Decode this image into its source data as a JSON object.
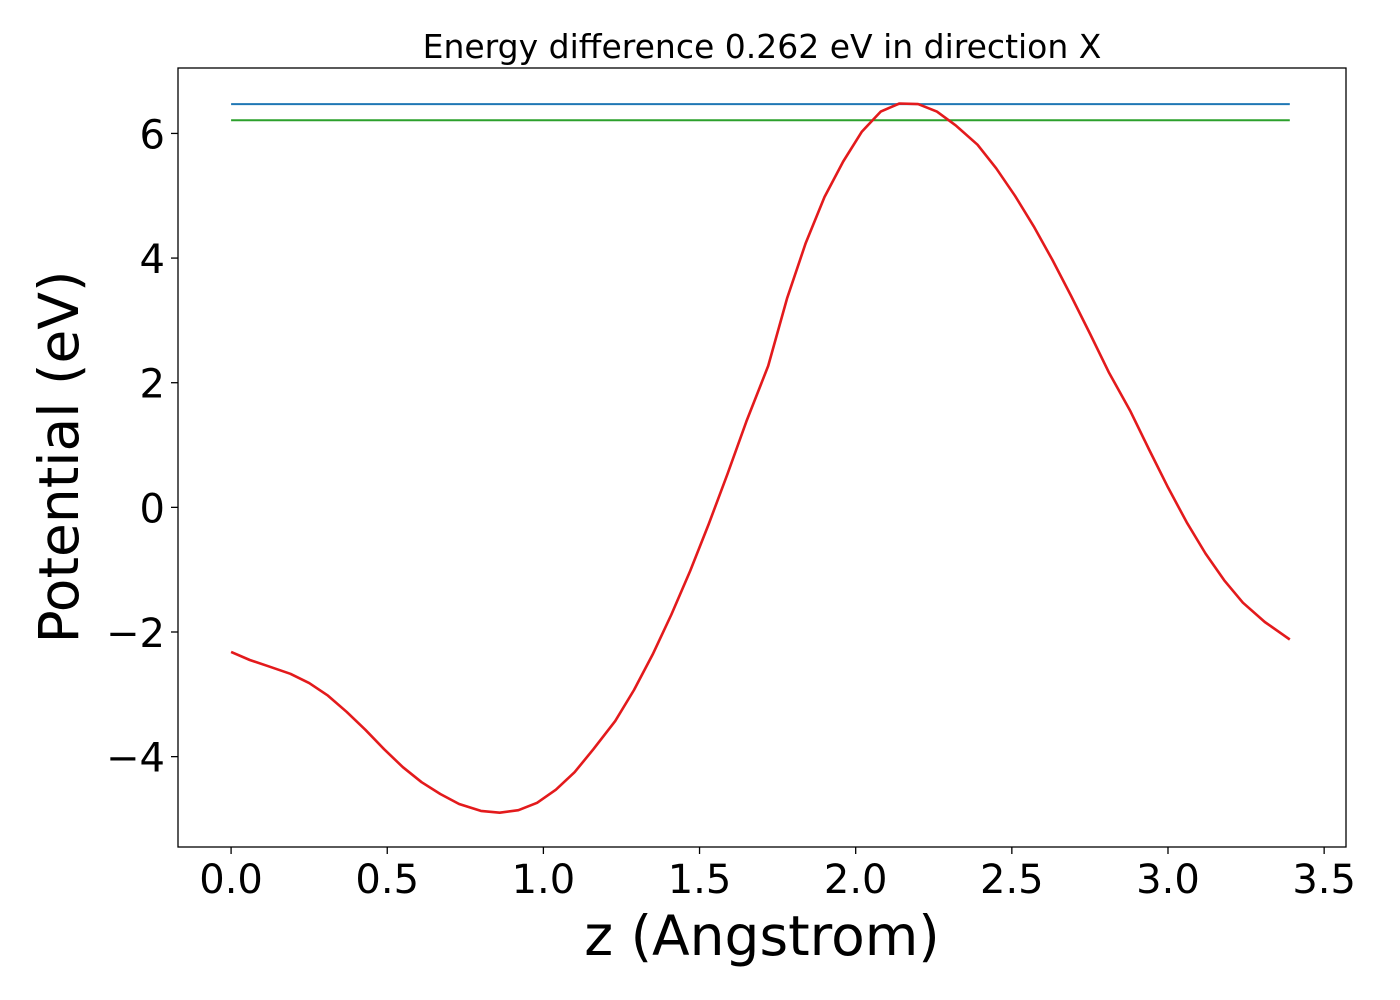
{
  "chart_data": {
    "type": "line",
    "title": "Energy difference 0.262 eV in direction X",
    "xlabel": "z (Angstrom)",
    "ylabel": "Potential (eV)",
    "xlim": [
      -0.17,
      3.57
    ],
    "ylim": [
      -5.45,
      7.05
    ],
    "x_ticks": [
      0.0,
      0.5,
      1.0,
      1.5,
      2.0,
      2.5,
      3.0,
      3.5
    ],
    "x_tick_labels": [
      "0.0",
      "0.5",
      "1.0",
      "1.5",
      "2.0",
      "2.5",
      "3.0",
      "3.5"
    ],
    "y_ticks": [
      -4,
      -2,
      0,
      2,
      4,
      6
    ],
    "y_tick_labels": [
      "−4",
      "−2",
      "0",
      "2",
      "4",
      "6"
    ],
    "grid": false,
    "series": [
      {
        "color": "#1f77b4",
        "x": [
          0.0,
          3.39
        ],
        "y": [
          6.47,
          6.47
        ]
      },
      {
        "color": "#2ca02c",
        "x": [
          0.0,
          3.39
        ],
        "y": [
          6.21,
          6.21
        ]
      },
      {
        "color": "#e31a1c",
        "x": [
          0.0,
          0.06,
          0.12,
          0.19,
          0.25,
          0.31,
          0.37,
          0.43,
          0.49,
          0.55,
          0.61,
          0.67,
          0.73,
          0.8,
          0.86,
          0.92,
          0.98,
          1.04,
          1.1,
          1.16,
          1.23,
          1.29,
          1.35,
          1.41,
          1.47,
          1.53,
          1.59,
          1.65,
          1.72,
          1.78,
          1.84,
          1.9,
          1.96,
          2.02,
          2.08,
          2.14,
          2.2,
          2.26,
          2.32,
          2.39,
          2.45,
          2.51,
          2.57,
          2.63,
          2.69,
          2.75,
          2.81,
          2.88,
          2.94,
          3.0,
          3.06,
          3.12,
          3.18,
          3.24,
          3.31,
          3.39
        ],
        "y": [
          -2.32,
          -2.45,
          -2.55,
          -2.67,
          -2.82,
          -3.02,
          -3.28,
          -3.57,
          -3.88,
          -4.17,
          -4.41,
          -4.6,
          -4.76,
          -4.87,
          -4.9,
          -4.86,
          -4.74,
          -4.53,
          -4.25,
          -3.88,
          -3.43,
          -2.93,
          -2.36,
          -1.72,
          -1.02,
          -0.26,
          0.54,
          1.38,
          2.27,
          3.35,
          4.24,
          4.98,
          5.55,
          6.03,
          6.35,
          6.48,
          6.47,
          6.35,
          6.13,
          5.82,
          5.44,
          5.0,
          4.51,
          3.97,
          3.39,
          2.79,
          2.17,
          1.54,
          0.92,
          0.32,
          -0.24,
          -0.74,
          -1.17,
          -1.53,
          -1.84,
          -2.12
        ]
      }
    ]
  }
}
